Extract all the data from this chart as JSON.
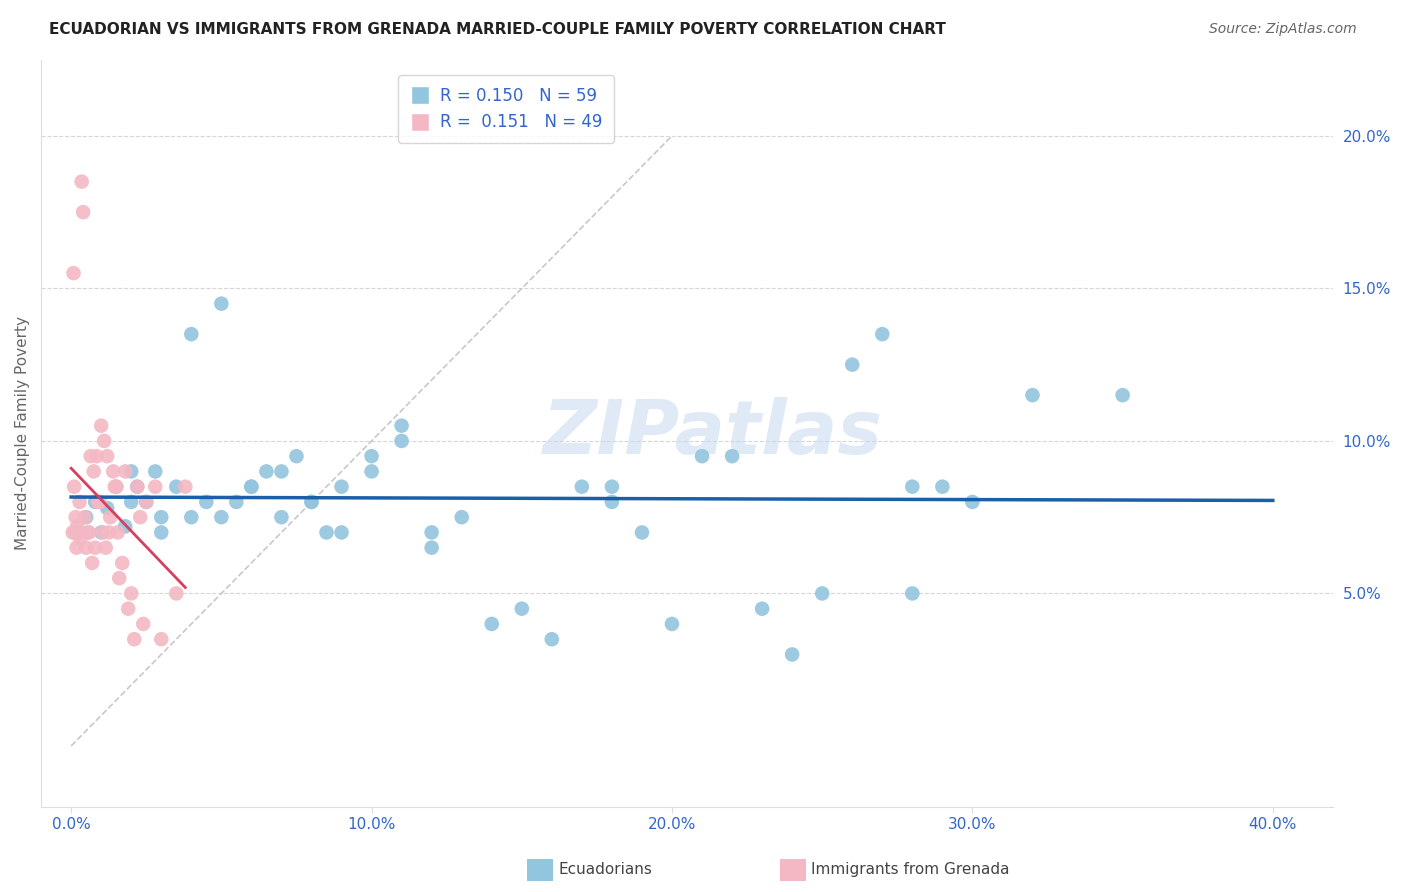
{
  "title": "ECUADORIAN VS IMMIGRANTS FROM GRENADA MARRIED-COUPLE FAMILY POVERTY CORRELATION CHART",
  "source": "Source: ZipAtlas.com",
  "ylabel": "Married-Couple Family Poverty",
  "x_tick_labels": [
    "0.0%",
    "10.0%",
    "20.0%",
    "30.0%",
    "40.0%"
  ],
  "x_tick_vals": [
    0.0,
    10.0,
    20.0,
    30.0,
    40.0
  ],
  "y_tick_labels": [
    "5.0%",
    "10.0%",
    "15.0%",
    "20.0%"
  ],
  "y_tick_vals": [
    5.0,
    10.0,
    15.0,
    20.0
  ],
  "xlim": [
    -1.0,
    42.0
  ],
  "ylim": [
    -2.0,
    22.5
  ],
  "blue_color": "#92c5de",
  "pink_color": "#f4b8c4",
  "blue_line_color": "#1a5fa8",
  "pink_line_color": "#d44060",
  "watermark_text": "ZIPatlas",
  "background_color": "#ffffff",
  "grid_color": "#cccccc",
  "ecuadorians_x": [
    0.5,
    0.8,
    1.0,
    1.2,
    1.5,
    1.8,
    2.0,
    2.2,
    2.5,
    2.8,
    3.0,
    3.5,
    4.0,
    4.5,
    5.0,
    5.5,
    6.0,
    6.5,
    7.0,
    7.5,
    8.0,
    8.5,
    9.0,
    10.0,
    11.0,
    12.0,
    13.0,
    14.0,
    15.0,
    16.0,
    17.0,
    18.0,
    19.0,
    20.0,
    21.0,
    22.0,
    23.0,
    24.0,
    25.0,
    26.0,
    27.0,
    28.0,
    29.0,
    30.0,
    32.0,
    35.0,
    2.0,
    3.0,
    4.0,
    5.0,
    6.0,
    7.0,
    8.0,
    9.0,
    10.0,
    11.0,
    12.0,
    18.0,
    28.0
  ],
  "ecuadorians_y": [
    7.5,
    8.0,
    7.0,
    7.8,
    8.5,
    7.2,
    9.0,
    8.5,
    8.0,
    9.0,
    7.5,
    8.5,
    7.5,
    8.0,
    14.5,
    8.0,
    8.5,
    9.0,
    7.5,
    9.5,
    8.0,
    7.0,
    8.5,
    9.5,
    10.5,
    7.0,
    7.5,
    4.0,
    4.5,
    3.5,
    8.5,
    8.0,
    7.0,
    4.0,
    9.5,
    9.5,
    4.5,
    3.0,
    5.0,
    12.5,
    13.5,
    5.0,
    8.5,
    8.0,
    11.5,
    11.5,
    8.0,
    7.0,
    13.5,
    7.5,
    8.5,
    9.0,
    8.0,
    7.0,
    9.0,
    10.0,
    6.5,
    8.5,
    8.5
  ],
  "grenada_x": [
    0.05,
    0.1,
    0.15,
    0.2,
    0.25,
    0.3,
    0.35,
    0.4,
    0.5,
    0.6,
    0.65,
    0.7,
    0.8,
    0.9,
    1.0,
    1.1,
    1.2,
    1.3,
    1.4,
    1.5,
    1.6,
    1.7,
    1.8,
    1.9,
    2.0,
    2.1,
    2.2,
    2.3,
    2.5,
    2.8,
    3.0,
    3.5,
    3.8,
    0.08,
    0.12,
    0.18,
    0.22,
    0.28,
    0.45,
    0.55,
    0.75,
    0.85,
    0.95,
    1.05,
    1.15,
    1.25,
    1.45,
    1.55,
    2.4
  ],
  "grenada_y": [
    7.0,
    8.5,
    7.5,
    7.2,
    7.0,
    6.8,
    18.5,
    17.5,
    6.5,
    7.0,
    9.5,
    6.0,
    6.5,
    8.0,
    10.5,
    10.0,
    9.5,
    7.5,
    9.0,
    8.5,
    5.5,
    6.0,
    9.0,
    4.5,
    5.0,
    3.5,
    8.5,
    7.5,
    8.0,
    8.5,
    3.5,
    5.0,
    8.5,
    15.5,
    7.0,
    6.5,
    7.0,
    8.0,
    7.5,
    7.0,
    9.0,
    9.5,
    8.0,
    7.0,
    6.5,
    7.0,
    8.5,
    7.0,
    4.0
  ],
  "ref_line_x": [
    0,
    20
  ],
  "ref_line_y": [
    0,
    20
  ]
}
